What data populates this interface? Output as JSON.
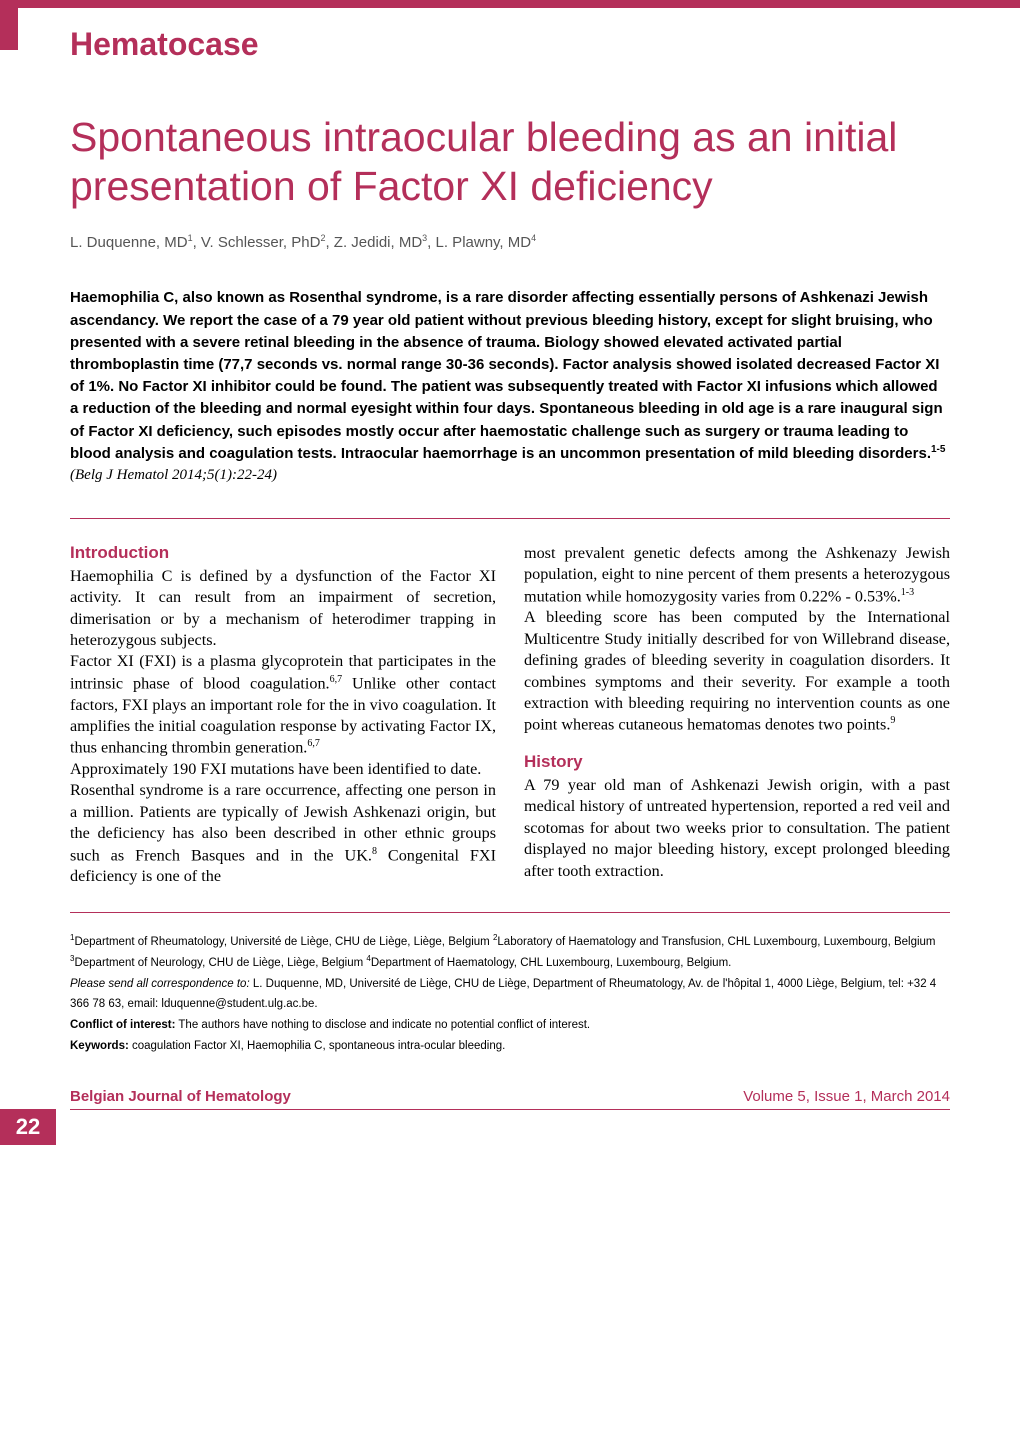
{
  "colors": {
    "accent": "#b42f5a",
    "text": "#000000",
    "background": "#ffffff",
    "author_gray": "#555555"
  },
  "typography": {
    "section_label_fontsize": 32,
    "title_fontsize": 41,
    "authors_fontsize": 15,
    "abstract_fontsize": 15,
    "heading_fontsize": 17,
    "body_fontsize": 16.2,
    "footnote_fontsize": 11.5,
    "footer_fontsize": 15
  },
  "section_label": "Hematocase",
  "title": "Spontaneous intraocular bleeding as an initial presentation of Factor XI deficiency",
  "authors_html": "L. Duquenne, MD<sup>1</sup>, V. Schlesser, PhD<sup>2</sup>, Z. Jedidi, MD<sup>3</sup>, L. Plawny, MD<sup>4</sup>",
  "abstract_html": "Haemophilia C, also known as Rosenthal syndrome, is a rare disorder affecting essentially persons of Ashkenazi Jewish ascendancy. We report the case of a 79 year old patient without previous bleeding history, except for slight bruising, who presented with a severe retinal bleeding in the absence of trauma. Biology showed elevated activated partial thromboplastin time (77,7 seconds vs. normal range 30-36 seconds). Factor analysis showed isolated decreased Factor XI of 1%. No Factor XI inhibitor could be found. The patient was subsequently treated with Factor XI infusions which allowed a reduction of the bleeding and normal eyesight within four days. Spontaneous bleeding in old age is a rare inaugural sign of Factor XI deficiency, such episodes mostly occur after haemostatic challenge such as surgery or trauma leading to blood analysis and coagulation tests. Intraocular haemorrhage is an uncommon presentation of mild bleeding disorders.<sup>1-5</sup>",
  "citation": "(Belg J Hematol 2014;5(1):22-24)",
  "headings": {
    "introduction": "Introduction",
    "history": "History"
  },
  "col1_p1_html": "Haemophilia C is defined by a dysfunction of the Factor XI activity. It can result from an impairment of secretion, dimerisation or by a mechanism of heterodimer trapping in heterozygous subjects.",
  "col1_p2_html": "Factor XI (FXI) is a plasma glycoprotein that participates in the intrinsic phase of blood coagulation.<sup>6,7</sup> Unlike other contact factors, FXI plays an important role for the in vivo coagulation. It amplifies the initial coagulation response by activating Factor IX, thus enhancing thrombin generation.<sup>6,7</sup>",
  "col1_p3_html": "Approximately 190 FXI mutations have been identified to date.",
  "col1_p4_html": "Rosenthal syndrome is a rare occurrence, affecting one person in a million. Patients are typically of Jewish Ashkenazi origin, but the deficiency has also been described in other ethnic groups such as French Basques and in the UK.<sup>8</sup> Congenital FXI deficiency is one of the",
  "col2_p1_html": "most prevalent genetic defects among the Ashkenazy Jewish population, eight to nine percent of them presents a heterozygous mutation while homozygosity varies from 0.22% - 0.53%.<sup>1-3</sup>",
  "col2_p2_html": "A bleeding score has been computed by the International Multicentre Study initially described for von Willebrand disease, defining grades of bleeding severity in coagulation disorders. It combines symptoms and their severity. For example a tooth extraction with bleeding requiring no intervention counts as one point whereas cutaneous hematomas denotes two points.<sup>9</sup>",
  "col2_p3_html": "A 79 year old man of Ashkenazi Jewish origin, with a past medical history of untreated hypertension, reported a red veil and scotomas for about two weeks prior to consultation. The patient displayed no major bleeding history, except prolonged bleeding after tooth extraction.",
  "affiliations_html": "<sup>1</sup>Department of Rheumatology, Université de Liège, CHU de Liège, Liège, Belgium <sup>2</sup>Laboratory of Haematology and Transfusion, CHL Luxembourg, Luxembourg, Belgium <sup>3</sup>Department of Neurology, CHU de Liège, Liège, Belgium <sup>4</sup>Department of Haematology, CHL Luxembourg, Luxembourg, Belgium.",
  "correspondence_html": "<span class=\"fi\">Please send all correspondence to:</span> L. Duquenne, MD, Université de Liège, CHU de Liège, Department of Rheumatology, Av. de l'hôpital 1, 4000 Liège, Belgium, tel: +32 4 366 78 63, email: lduquenne@student.ulg.ac.be.",
  "conflict_html": "<b>Conflict of interest:</b> The authors have nothing to disclose and indicate no potential conflict of interest.",
  "keywords_html": "<b>Keywords:</b> coagulation Factor XI, Haemophilia C, spontaneous intra-ocular bleeding.",
  "journal_name": "Belgian Journal of Hematology",
  "issue_info": "Volume 5, Issue 1, March 2014",
  "page_number": "22"
}
